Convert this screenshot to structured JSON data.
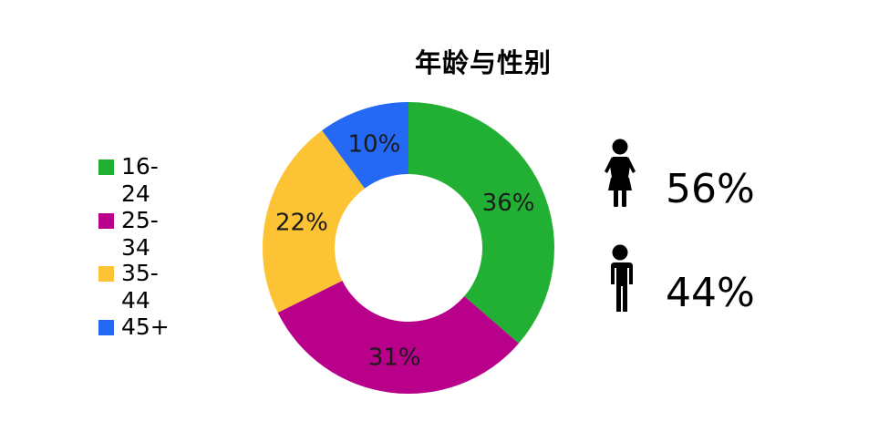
{
  "chart_data": {
    "type": "pie",
    "title": "年龄与性别",
    "donut": true,
    "categories": [
      "16-24",
      "25-34",
      "35-44",
      "45+"
    ],
    "values": [
      36,
      31,
      22,
      10
    ],
    "labels": [
      "36%",
      "31%",
      "22%",
      "10%"
    ],
    "colors": [
      "#22b034",
      "#b8008a",
      "#fcc434",
      "#2468f4"
    ],
    "legend_position": "left"
  },
  "gender": {
    "female": {
      "icon": "female-person-icon",
      "value": "56%"
    },
    "male": {
      "icon": "male-person-icon",
      "value": "44%"
    }
  }
}
